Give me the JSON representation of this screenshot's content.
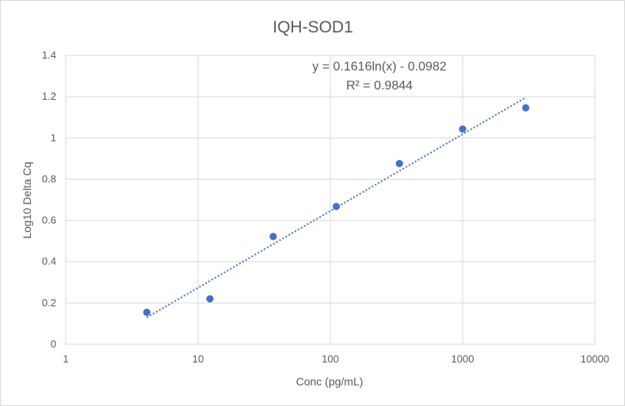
{
  "chart_data": {
    "type": "scatter",
    "title": "IQH-SOD1",
    "xlabel": "Conc (pg/mL)",
    "ylabel": "Log10 Delta Cq",
    "x_scale": "log",
    "xlim": [
      1,
      10000
    ],
    "ylim": [
      0,
      1.4
    ],
    "x_ticks": [
      "1",
      "10",
      "100",
      "1000",
      "10000"
    ],
    "y_ticks": [
      "0",
      "0.2",
      "0.4",
      "0.6",
      "0.8",
      "1",
      "1.2",
      "1.4"
    ],
    "grid": true,
    "series": [
      {
        "x": [
          4.1,
          12.3,
          37,
          111,
          333,
          1000,
          3000
        ],
        "y": [
          0.155,
          0.22,
          0.522,
          0.668,
          0.876,
          1.043,
          1.146
        ],
        "color": "#4472c4"
      }
    ],
    "trendline": {
      "type": "logarithmic",
      "slope": 0.1616,
      "intercept": -0.0982,
      "x_range": [
        4.1,
        3000
      ],
      "color": "#4472c4",
      "style": "dotted",
      "equation": "y = 0.1616ln(x) - 0.0982",
      "r_squared": "R² = 0.9844"
    }
  }
}
